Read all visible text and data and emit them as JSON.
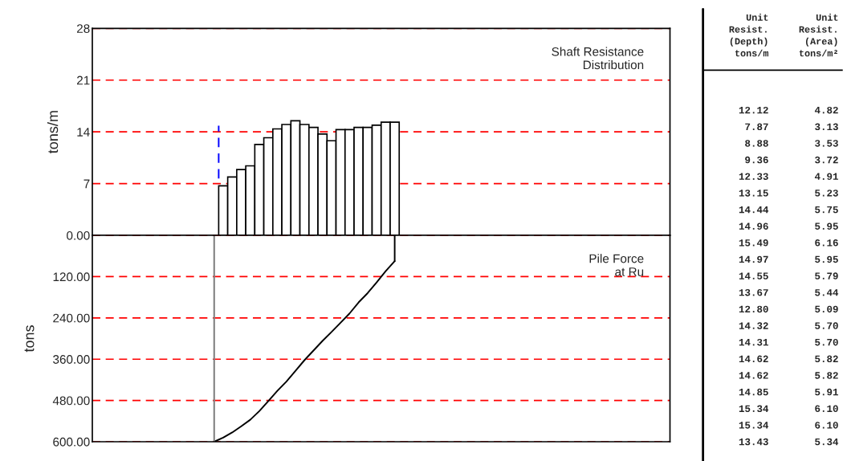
{
  "chart_data": [
    {
      "type": "bar",
      "ylabel": "tons/m",
      "annotations": [
        "Shaft Resistance\nDistribution"
      ],
      "categories": [
        null,
        null,
        null,
        null,
        null,
        null,
        null,
        null,
        null,
        null,
        null,
        null,
        null,
        null,
        null,
        null,
        null,
        null,
        null,
        null,
        null,
        null,
        null,
        null,
        null,
        null,
        null,
        null,
        null,
        null,
        null,
        null,
        null,
        null,
        null,
        null,
        null,
        null,
        null,
        null,
        null,
        null,
        null,
        null,
        null,
        null,
        null,
        null,
        null,
        null,
        null,
        null,
        null,
        null,
        null,
        null,
        null,
        null,
        null,
        null,
        null,
        null,
        null,
        null
      ],
      "series": [
        {
          "type": "bar",
          "color": "#ffffff",
          "values": [
            null,
            null,
            null,
            null,
            null,
            null,
            null,
            null,
            null,
            null,
            null,
            null,
            null,
            null,
            6.7,
            7.9,
            8.9,
            9.4,
            12.3,
            13.2,
            14.4,
            15.0,
            15.5,
            15.0,
            14.6,
            13.7,
            12.8,
            14.3,
            14.3,
            14.6,
            14.6,
            14.9,
            15.3,
            15.3,
            null,
            null,
            null,
            null,
            null,
            null,
            null,
            null,
            null,
            null,
            null,
            null,
            null,
            null,
            null,
            null,
            null,
            null,
            null,
            null,
            null,
            null,
            null,
            null,
            null,
            null,
            null,
            null,
            null,
            null
          ]
        }
      ],
      "ylim": [
        0,
        28
      ],
      "yticks": [
        {
          "value": 0,
          "label": null
        },
        7,
        14,
        21,
        28
      ],
      "grid": "y",
      "tick_labels": "y"
    },
    {
      "type": "line",
      "ylabel": "tons",
      "annotations": [
        "Pile Force\nat Ru"
      ],
      "categories": [
        null,
        null,
        null,
        null,
        null,
        null,
        null,
        null,
        null,
        null,
        null,
        null,
        null,
        null,
        null,
        null,
        null,
        null,
        null,
        null,
        null,
        null,
        null,
        null,
        null,
        null,
        null,
        null,
        null,
        null,
        null,
        null,
        null,
        null,
        null,
        null,
        null,
        null,
        null,
        null,
        null,
        null,
        null,
        null,
        null,
        null,
        null,
        null,
        null,
        null,
        null,
        null,
        null,
        null,
        null,
        null,
        null,
        null,
        null,
        null,
        null,
        null,
        null,
        null
      ],
      "series": [
        {
          "type": "line",
          "color": "#000000",
          "values": [
            null,
            null,
            null,
            null,
            null,
            null,
            null,
            null,
            null,
            null,
            null,
            null,
            null,
            600,
            588,
            573,
            555,
            536,
            511,
            482,
            452,
            425,
            394,
            363,
            335,
            307,
            281,
            254,
            227,
            195,
            168,
            137,
            104,
            75,
            null,
            null,
            null,
            null,
            null,
            null,
            null,
            null,
            null,
            null,
            null,
            null,
            null,
            null,
            null,
            null,
            null,
            null,
            null,
            null,
            null,
            null,
            null,
            null,
            null,
            null,
            null,
            null,
            null,
            null
          ]
        }
      ],
      "ylim": [
        600,
        0
      ],
      "yticks": [
        {
          "value": 0,
          "label": "0.00"
        },
        {
          "value": 120,
          "label": "120.00"
        },
        {
          "value": 240,
          "label": "240.00"
        },
        {
          "value": 360,
          "label": "360.00"
        },
        {
          "value": 480,
          "label": "480.00"
        },
        {
          "value": 600,
          "label": "600.00"
        }
      ],
      "grid": "y",
      "tick_labels": "y"
    },
    {
      "type": "other",
      "categories": [
        "Unit\nResist.\n(Depth)\ntons/m",
        "Unit\nResist.\n(Area)\ntons/m²"
      ],
      "cell_labels": [
        [
          "12.12",
          "4.82"
        ],
        [
          "7.87",
          "3.13"
        ],
        [
          "8.88",
          "3.53"
        ],
        [
          "9.36",
          "3.72"
        ],
        [
          "12.33",
          "4.91"
        ],
        [
          "13.15",
          "5.23"
        ],
        [
          "14.44",
          "5.75"
        ],
        [
          "14.96",
          "5.95"
        ],
        [
          "15.49",
          "6.16"
        ],
        [
          "14.97",
          "5.95"
        ],
        [
          "14.55",
          "5.79"
        ],
        [
          "13.67",
          "5.44"
        ],
        [
          "12.80",
          "5.09"
        ],
        [
          "14.32",
          "5.70"
        ],
        [
          "14.31",
          "5.70"
        ],
        [
          "14.62",
          "5.82"
        ],
        [
          "14.62",
          "5.82"
        ],
        [
          "14.85",
          "5.91"
        ],
        [
          "15.34",
          "6.10"
        ],
        [
          "15.34",
          "6.10"
        ],
        [
          "13.43",
          "5.34"
        ]
      ]
    }
  ]
}
